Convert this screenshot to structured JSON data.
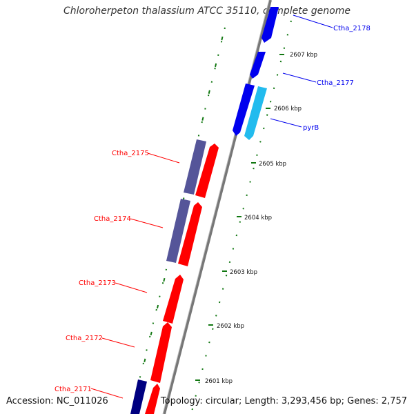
{
  "title": "Chloroherpeton thalassium ATCC 35110, complete genome",
  "accession": "Accession: NC_011026",
  "topology": "Topology: circular; Length: 3,293,456 bp; Genes: 2,757",
  "colors": {
    "forward": "#ff0000",
    "reverse": "#0000ee",
    "purple": "#555599",
    "cyan": "#22bbee",
    "navy": "#000080",
    "backbone": "#888888",
    "ticks": "#117711"
  },
  "ticks": [
    "2601 kbp",
    "2602 kbp",
    "2603 kbp",
    "2604 kbp",
    "2605 kbp",
    "2606 kbp",
    "2607 kbp"
  ],
  "genes": [
    {
      "name": "Ctha_2178",
      "strand": "reverse"
    },
    {
      "name": "Ctha_2177",
      "strand": "reverse"
    },
    {
      "name": "pyrB",
      "strand": "reverse"
    },
    {
      "name": "Ctha_2175",
      "strand": "forward"
    },
    {
      "name": "Ctha_2174",
      "strand": "forward"
    },
    {
      "name": "Ctha_2173",
      "strand": "forward"
    },
    {
      "name": "Ctha_2172",
      "strand": "forward"
    },
    {
      "name": "Ctha_2171",
      "strand": "forward"
    }
  ]
}
